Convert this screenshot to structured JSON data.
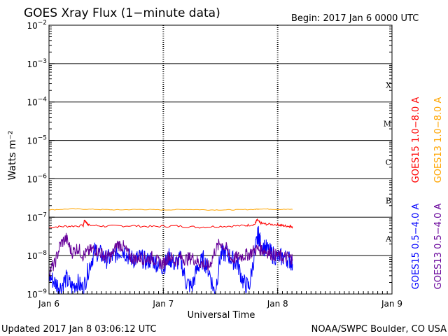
{
  "chart_data": {
    "type": "line",
    "title": "GOES Xray Flux (1−minute data)",
    "begin_label": "Begin:  2017 Jan 6 0000 UTC",
    "xlabel": "Universal Time",
    "ylabel": "Watts m⁻²",
    "yscale": "log",
    "ylim": [
      1e-09,
      0.01
    ],
    "xlim": [
      0,
      3
    ],
    "x_unit": "days since 2017 Jan 6 0000 UTC",
    "x_ticks": [
      {
        "value": 0,
        "label": "Jan 6"
      },
      {
        "value": 1,
        "label": "Jan 7"
      },
      {
        "value": 2,
        "label": "Jan 8"
      },
      {
        "value": 3,
        "label": "Jan 9"
      }
    ],
    "y_ticks": [
      {
        "value": 1e-09,
        "base": "10",
        "exp": "−9"
      },
      {
        "value": 1e-08,
        "base": "10",
        "exp": "−8"
      },
      {
        "value": 1e-07,
        "base": "10",
        "exp": "−7"
      },
      {
        "value": 1e-06,
        "base": "10",
        "exp": "−6"
      },
      {
        "value": 1e-05,
        "base": "10",
        "exp": "−5"
      },
      {
        "value": 0.0001,
        "base": "10",
        "exp": "−4"
      },
      {
        "value": 0.001,
        "base": "10",
        "exp": "−3"
      },
      {
        "value": 0.01,
        "base": "10",
        "exp": "−2"
      }
    ],
    "flare_classes": [
      {
        "label": "A",
        "value": 1e-08
      },
      {
        "label": "B",
        "value": 1e-07
      },
      {
        "label": "C",
        "value": 1e-06
      },
      {
        "label": "M",
        "value": 1e-05
      },
      {
        "label": "X",
        "value": 0.0001
      }
    ],
    "grid": true,
    "series": [
      {
        "name": "GOES15 1.0−8.0 A",
        "color": "#ff0000",
        "x": [
          0,
          0.15,
          0.3,
          0.31,
          0.33,
          0.35,
          0.5,
          0.7,
          0.9,
          1.1,
          1.3,
          1.5,
          1.7,
          1.8,
          1.82,
          1.85,
          1.9,
          2.0,
          2.05,
          2.1,
          2.13
        ],
        "y": [
          5.5e-08,
          5.8e-08,
          6e-08,
          8.5e-08,
          7e-08,
          6.2e-08,
          5.8e-08,
          6e-08,
          5.7e-08,
          5.9e-08,
          5.5e-08,
          5.8e-08,
          6e-08,
          6.5e-08,
          8.5e-08,
          7e-08,
          6.6e-08,
          6.4e-08,
          6e-08,
          5.8e-08,
          5.7e-08
        ]
      },
      {
        "name": "GOES13 1.0−8.0 A",
        "color": "#ffa500",
        "x": [
          0,
          0.2,
          0.4,
          0.6,
          0.8,
          1.0,
          1.2,
          1.4,
          1.6,
          1.8,
          1.85,
          2.0,
          2.13
        ],
        "y": [
          1.55e-07,
          1.65e-07,
          1.6e-07,
          1.55e-07,
          1.6e-07,
          1.55e-07,
          1.6e-07,
          1.55e-07,
          1.55e-07,
          1.6e-07,
          1.65e-07,
          1.6e-07,
          1.6e-07
        ]
      },
      {
        "name": "GOES15 0.5−4.0 A",
        "color": "#0000ff",
        "x": [
          0,
          0.05,
          0.1,
          0.15,
          0.2,
          0.25,
          0.3,
          0.35,
          0.4,
          0.45,
          0.5,
          0.55,
          0.6,
          0.65,
          0.7,
          0.75,
          0.8,
          0.85,
          0.9,
          0.95,
          1.0,
          1.05,
          1.1,
          1.15,
          1.2,
          1.25,
          1.3,
          1.35,
          1.4,
          1.45,
          1.5,
          1.55,
          1.6,
          1.65,
          1.7,
          1.75,
          1.8,
          1.83,
          1.85,
          1.9,
          1.95,
          2.0,
          2.05,
          2.1,
          2.13
        ],
        "y": [
          3e-09,
          2e-09,
          1.5e-09,
          2.5e-09,
          1.5e-09,
          2e-09,
          1.3e-09,
          5e-09,
          1.3e-08,
          1.1e-08,
          8e-09,
          9e-09,
          1.2e-08,
          1.4e-08,
          9e-09,
          8e-09,
          9e-09,
          7e-09,
          8e-09,
          6e-09,
          5e-09,
          9e-09,
          6e-09,
          8e-09,
          2e-09,
          1.5e-09,
          5e-09,
          8e-09,
          4e-09,
          1e-09,
          1e-08,
          1.2e-08,
          8e-09,
          6e-09,
          2e-09,
          1.5e-09,
          1.2e-08,
          3.8e-08,
          2e-08,
          1.5e-08,
          1.1e-08,
          9e-09,
          9e-09,
          8e-09,
          6e-09
        ]
      },
      {
        "name": "GOES13 0.5−4.0 A",
        "color": "#660099",
        "x": [
          0,
          0.05,
          0.1,
          0.15,
          0.2,
          0.25,
          0.3,
          0.35,
          0.4,
          0.45,
          0.5,
          0.55,
          0.6,
          0.65,
          0.7,
          0.75,
          0.8,
          0.85,
          0.9,
          0.95,
          1.0,
          1.05,
          1.1,
          1.15,
          1.2,
          1.25,
          1.3,
          1.35,
          1.4,
          1.45,
          1.5,
          1.55,
          1.6,
          1.65,
          1.7,
          1.75,
          1.8,
          1.85,
          1.9,
          1.95,
          2.0,
          2.05,
          2.1,
          2.13
        ],
        "y": [
          4e-09,
          6e-09,
          2e-08,
          2.8e-08,
          1.2e-08,
          1.6e-08,
          1e-08,
          1.3e-08,
          1.5e-08,
          1.2e-08,
          9e-09,
          1e-08,
          2e-08,
          1.7e-08,
          1e-08,
          8e-09,
          9e-09,
          8e-09,
          9e-09,
          7e-09,
          6e-09,
          1e-08,
          7e-09,
          9e-09,
          8e-09,
          9e-09,
          7e-09,
          6e-09,
          5e-09,
          1.3e-08,
          2.2e-08,
          1.5e-08,
          8e-09,
          9e-09,
          1e-08,
          1.1e-08,
          1.4e-08,
          1.5e-08,
          1.3e-08,
          1.1e-08,
          1e-08,
          9e-09,
          9e-09,
          8e-09
        ]
      }
    ]
  },
  "footer": {
    "updated": "Updated 2017 Jan  8 03:06:12 UTC",
    "source": "NOAA/SWPC Boulder, CO USA"
  }
}
